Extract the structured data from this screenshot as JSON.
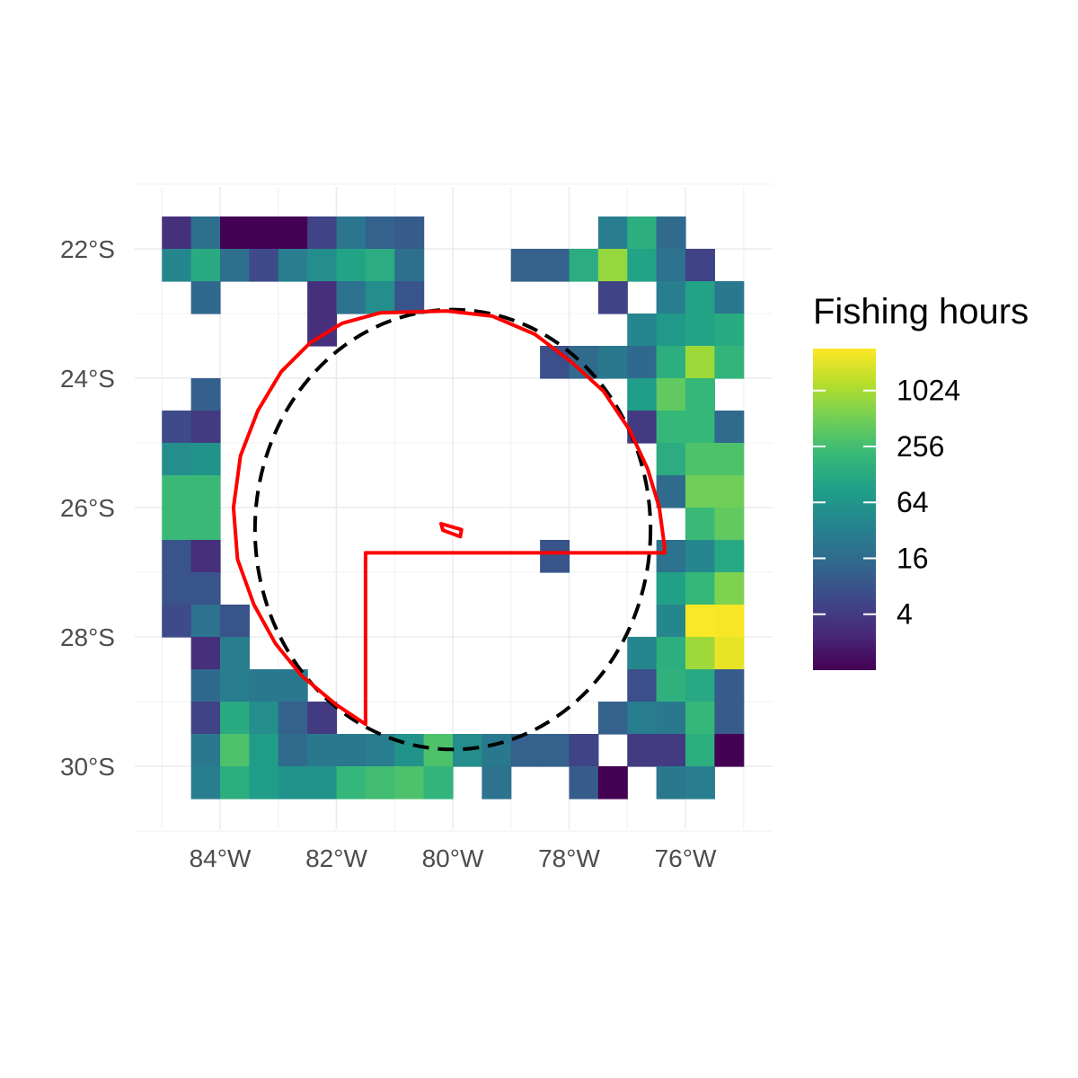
{
  "chart_data": {
    "type": "heatmap",
    "title": "",
    "xlabel": "",
    "ylabel": "",
    "cell_size_deg": 0.5,
    "xlim": [
      -85,
      -74.5
    ],
    "ylim": [
      -31.0,
      -21.0
    ],
    "x_ticks": [
      {
        "value": -84,
        "label": "84°W"
      },
      {
        "value": -82,
        "label": "82°W"
      },
      {
        "value": -80,
        "label": "80°W"
      },
      {
        "value": -78,
        "label": "78°W"
      },
      {
        "value": -76,
        "label": "76°W"
      }
    ],
    "y_ticks": [
      {
        "value": -22,
        "label": "22°S"
      },
      {
        "value": -24,
        "label": "24°S"
      },
      {
        "value": -26,
        "label": "26°S"
      },
      {
        "value": -28,
        "label": "28°S"
      },
      {
        "value": -30,
        "label": "30°S"
      }
    ],
    "grid": true,
    "color_scale": {
      "name": "viridis",
      "transform": "log2",
      "min": 1,
      "max": 2900,
      "stops": [
        "#440154",
        "#482878",
        "#3e4989",
        "#31688e",
        "#26828e",
        "#1f9e89",
        "#35b779",
        "#6ece58",
        "#b5de2b",
        "#fde725"
      ]
    },
    "legend": {
      "title": "Fishing hours",
      "labels": [
        "1024",
        "256",
        "64",
        "16",
        "4"
      ],
      "values": [
        1024,
        256,
        64,
        16,
        4
      ],
      "position": "right"
    },
    "rows": [
      {
        "lat": -21.75,
        "cells": [
          [
            -84.75,
            3
          ],
          [
            -84.25,
            18
          ],
          [
            -83.75,
            1
          ],
          [
            -83.25,
            1
          ],
          [
            -82.75,
            1
          ],
          [
            -82.25,
            5
          ],
          [
            -81.75,
            22
          ],
          [
            -81.25,
            12
          ],
          [
            -80.75,
            10
          ],
          [
            -77.25,
            30
          ],
          [
            -76.75,
            150
          ],
          [
            -76.25,
            16
          ]
        ]
      },
      {
        "lat": -22.25,
        "cells": [
          [
            -84.75,
            40
          ],
          [
            -84.25,
            130
          ],
          [
            -83.75,
            18
          ],
          [
            -83.25,
            6
          ],
          [
            -82.75,
            30
          ],
          [
            -82.25,
            50
          ],
          [
            -81.75,
            100
          ],
          [
            -81.25,
            140
          ],
          [
            -80.75,
            18
          ],
          [
            -78.75,
            12
          ],
          [
            -78.25,
            12
          ],
          [
            -77.75,
            140
          ],
          [
            -77.25,
            800
          ],
          [
            -76.75,
            100
          ],
          [
            -76.25,
            20
          ],
          [
            -75.75,
            5
          ]
        ]
      },
      {
        "lat": -22.75,
        "cells": [
          [
            -84.25,
            15
          ],
          [
            -82.25,
            3
          ],
          [
            -81.75,
            20
          ],
          [
            -81.25,
            50
          ],
          [
            -80.75,
            8
          ],
          [
            -77.25,
            5
          ],
          [
            -76.25,
            30
          ],
          [
            -75.75,
            100
          ],
          [
            -75.25,
            25
          ]
        ]
      },
      {
        "lat": -23.25,
        "cells": [
          [
            -82.25,
            3
          ],
          [
            -76.75,
            40
          ],
          [
            -76.25,
            70
          ],
          [
            -75.75,
            100
          ],
          [
            -75.25,
            130
          ]
        ]
      },
      {
        "lat": -23.75,
        "cells": [
          [
            -78.25,
            7
          ],
          [
            -77.75,
            16
          ],
          [
            -77.25,
            25
          ],
          [
            -76.75,
            15
          ],
          [
            -76.25,
            150
          ],
          [
            -75.75,
            900
          ],
          [
            -75.25,
            180
          ]
        ]
      },
      {
        "lat": -24.25,
        "cells": [
          [
            -84.25,
            11
          ],
          [
            -76.75,
            80
          ],
          [
            -76.25,
            400
          ],
          [
            -75.75,
            200
          ]
        ]
      },
      {
        "lat": -24.75,
        "cells": [
          [
            -84.75,
            6
          ],
          [
            -84.25,
            4
          ],
          [
            -76.75,
            4
          ],
          [
            -76.25,
            200
          ],
          [
            -75.75,
            200
          ],
          [
            -75.25,
            16
          ]
        ]
      },
      {
        "lat": -25.25,
        "cells": [
          [
            -84.75,
            50
          ],
          [
            -84.25,
            60
          ],
          [
            -76.25,
            140
          ],
          [
            -75.75,
            300
          ],
          [
            -75.25,
            300
          ]
        ]
      },
      {
        "lat": -25.75,
        "cells": [
          [
            -84.75,
            220
          ],
          [
            -84.25,
            220
          ],
          [
            -76.25,
            16
          ],
          [
            -75.75,
            500
          ],
          [
            -75.25,
            500
          ]
        ]
      },
      {
        "lat": -26.25,
        "cells": [
          [
            -84.75,
            220
          ],
          [
            -84.25,
            220
          ],
          [
            -75.75,
            220
          ],
          [
            -75.25,
            400
          ]
        ]
      },
      {
        "lat": -26.75,
        "cells": [
          [
            -84.75,
            8
          ],
          [
            -84.25,
            3
          ],
          [
            -78.25,
            8
          ],
          [
            -76.25,
            20
          ],
          [
            -75.75,
            40
          ],
          [
            -75.25,
            120
          ]
        ]
      },
      {
        "lat": -27.25,
        "cells": [
          [
            -84.75,
            8
          ],
          [
            -84.25,
            8
          ],
          [
            -76.25,
            90
          ],
          [
            -75.75,
            200
          ],
          [
            -75.25,
            600
          ]
        ]
      },
      {
        "lat": -27.75,
        "cells": [
          [
            -84.75,
            6
          ],
          [
            -84.25,
            20
          ],
          [
            -83.75,
            8
          ],
          [
            -76.25,
            40
          ],
          [
            -75.75,
            2800
          ],
          [
            -75.25,
            2700
          ]
        ]
      },
      {
        "lat": -28.25,
        "cells": [
          [
            -84.25,
            3
          ],
          [
            -83.75,
            30
          ],
          [
            -76.75,
            40
          ],
          [
            -76.25,
            150
          ],
          [
            -75.75,
            900
          ],
          [
            -75.25,
            2200
          ]
        ]
      },
      {
        "lat": -28.75,
        "cells": [
          [
            -84.25,
            15
          ],
          [
            -83.75,
            30
          ],
          [
            -83.25,
            25
          ],
          [
            -82.75,
            25
          ],
          [
            -76.75,
            7
          ],
          [
            -76.25,
            160
          ],
          [
            -75.75,
            120
          ],
          [
            -75.25,
            10
          ]
        ]
      },
      {
        "lat": -29.25,
        "cells": [
          [
            -84.25,
            5
          ],
          [
            -83.75,
            130
          ],
          [
            -83.25,
            50
          ],
          [
            -82.75,
            12
          ],
          [
            -82.25,
            4
          ],
          [
            -77.25,
            12
          ],
          [
            -76.75,
            30
          ],
          [
            -76.25,
            25
          ],
          [
            -75.75,
            200
          ],
          [
            -75.25,
            10
          ]
        ]
      },
      {
        "lat": -29.75,
        "cells": [
          [
            -84.25,
            25
          ],
          [
            -83.75,
            300
          ],
          [
            -83.25,
            80
          ],
          [
            -82.75,
            16
          ],
          [
            -82.25,
            25
          ],
          [
            -81.75,
            25
          ],
          [
            -81.25,
            30
          ],
          [
            -80.75,
            60
          ],
          [
            -80.25,
            300
          ],
          [
            -79.75,
            50
          ],
          [
            -79.25,
            25
          ],
          [
            -78.75,
            12
          ],
          [
            -78.25,
            12
          ],
          [
            -77.75,
            5
          ],
          [
            -76.75,
            4
          ],
          [
            -76.25,
            4
          ],
          [
            -75.75,
            150
          ],
          [
            -75.25,
            1
          ]
        ]
      },
      {
        "lat": -30.25,
        "cells": [
          [
            -84.25,
            30
          ],
          [
            -83.75,
            150
          ],
          [
            -83.25,
            80
          ],
          [
            -82.75,
            60
          ],
          [
            -82.25,
            60
          ],
          [
            -81.75,
            200
          ],
          [
            -81.25,
            250
          ],
          [
            -80.75,
            300
          ],
          [
            -80.25,
            180
          ],
          [
            -79.25,
            20
          ],
          [
            -77.75,
            10
          ],
          [
            -77.25,
            1
          ],
          [
            -76.25,
            25
          ],
          [
            -75.75,
            30
          ]
        ]
      }
    ],
    "boundaries": {
      "eez_circle": {
        "center_lon": -80.0,
        "center_lat": -26.34,
        "radius_deg": 3.4,
        "style": "dashed",
        "color": "#000000"
      },
      "mpa_outline": {
        "color": "#ff0000",
        "points": [
          [
            -80.1,
            -22.96
          ],
          [
            -79.32,
            -23.04
          ],
          [
            -78.59,
            -23.32
          ],
          [
            -77.97,
            -23.74
          ],
          [
            -77.41,
            -24.2
          ],
          [
            -76.96,
            -24.8
          ],
          [
            -76.65,
            -25.4
          ],
          [
            -76.45,
            -26.0
          ],
          [
            -76.36,
            -26.6
          ],
          [
            -76.36,
            -26.7
          ],
          [
            -81.5,
            -26.7
          ],
          [
            -81.5,
            -29.35
          ],
          [
            -82.0,
            -29.05
          ],
          [
            -82.6,
            -28.6
          ],
          [
            -83.05,
            -28.1
          ],
          [
            -83.42,
            -27.5
          ],
          [
            -83.7,
            -26.8
          ],
          [
            -83.77,
            -26.0
          ],
          [
            -83.65,
            -25.2
          ],
          [
            -83.35,
            -24.5
          ],
          [
            -82.95,
            -23.9
          ],
          [
            -82.45,
            -23.45
          ],
          [
            -81.9,
            -23.15
          ],
          [
            -81.25,
            -22.99
          ],
          [
            -80.1,
            -22.96
          ]
        ]
      },
      "island_outline": {
        "color": "#ff0000",
        "points": [
          [
            -80.2,
            -26.25
          ],
          [
            -79.85,
            -26.34
          ],
          [
            -79.87,
            -26.45
          ],
          [
            -80.17,
            -26.35
          ]
        ]
      }
    }
  }
}
